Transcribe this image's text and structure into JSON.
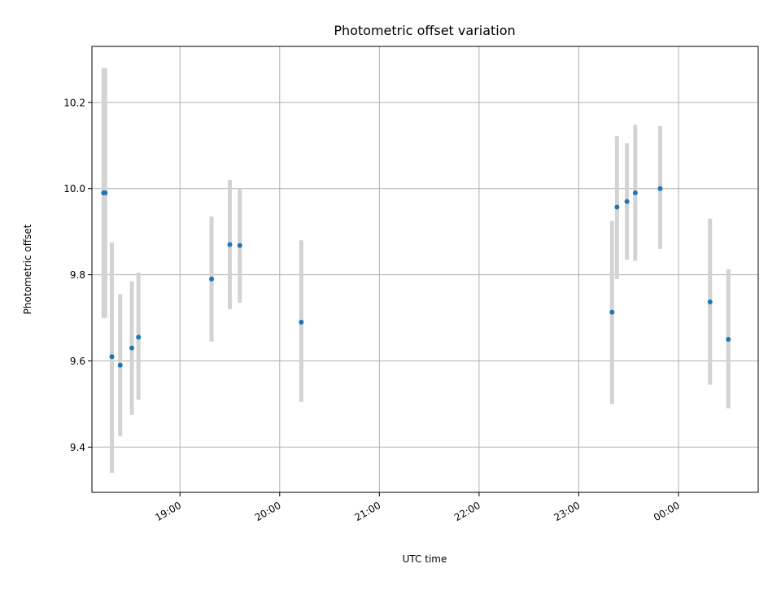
{
  "chart_data": {
    "type": "scatter",
    "title": "Photometric offset variation",
    "xlabel": "UTC time",
    "ylabel": "Photometric offset",
    "x_axis_type": "time",
    "xlim": [
      "18:07",
      "00:48"
    ],
    "ylim": [
      9.295,
      10.33
    ],
    "x_ticks": [
      "19:00",
      "20:00",
      "21:00",
      "22:00",
      "23:00",
      "00:00"
    ],
    "y_ticks": [
      9.4,
      9.6,
      9.8,
      10.0,
      10.2
    ],
    "y_tick_labels": [
      "9.4",
      "9.6",
      "9.8",
      "10.0",
      "10.2"
    ],
    "grid": true,
    "legend": false,
    "colors": {
      "points": "#1f77b4",
      "error_bars": "#d3d3d3",
      "grid": "#b0b0b0",
      "axes": "#000000"
    },
    "points": [
      {
        "x": "18:14",
        "y": 9.99,
        "err_low": 9.7,
        "err_high": 10.28
      },
      {
        "x": "18:15",
        "y": 9.99,
        "err_low": 9.7,
        "err_high": 10.28
      },
      {
        "x": "18:19",
        "y": 9.61,
        "err_low": 9.34,
        "err_high": 9.875
      },
      {
        "x": "18:24",
        "y": 9.59,
        "err_low": 9.425,
        "err_high": 9.755
      },
      {
        "x": "18:31",
        "y": 9.63,
        "err_low": 9.475,
        "err_high": 9.785
      },
      {
        "x": "18:35",
        "y": 9.655,
        "err_low": 9.51,
        "err_high": 9.805
      },
      {
        "x": "19:19",
        "y": 9.79,
        "err_low": 9.645,
        "err_high": 9.935
      },
      {
        "x": "19:30",
        "y": 9.87,
        "err_low": 9.72,
        "err_high": 10.02
      },
      {
        "x": "19:36",
        "y": 9.868,
        "err_low": 9.735,
        "err_high": 10.0
      },
      {
        "x": "20:13",
        "y": 9.69,
        "err_low": 9.505,
        "err_high": 9.88
      },
      {
        "x": "23:20",
        "y": 9.713,
        "err_low": 9.5,
        "err_high": 9.925
      },
      {
        "x": "23:23",
        "y": 9.957,
        "err_low": 9.79,
        "err_high": 10.122
      },
      {
        "x": "23:29",
        "y": 9.97,
        "err_low": 9.835,
        "err_high": 10.105
      },
      {
        "x": "23:34",
        "y": 9.99,
        "err_low": 9.832,
        "err_high": 10.148
      },
      {
        "x": "23:49",
        "y": 10.0,
        "err_low": 9.86,
        "err_high": 10.145
      },
      {
        "x": "00:19",
        "y": 9.737,
        "err_low": 9.545,
        "err_high": 9.93
      },
      {
        "x": "00:30",
        "y": 9.65,
        "err_low": 9.49,
        "err_high": 9.813
      }
    ]
  }
}
